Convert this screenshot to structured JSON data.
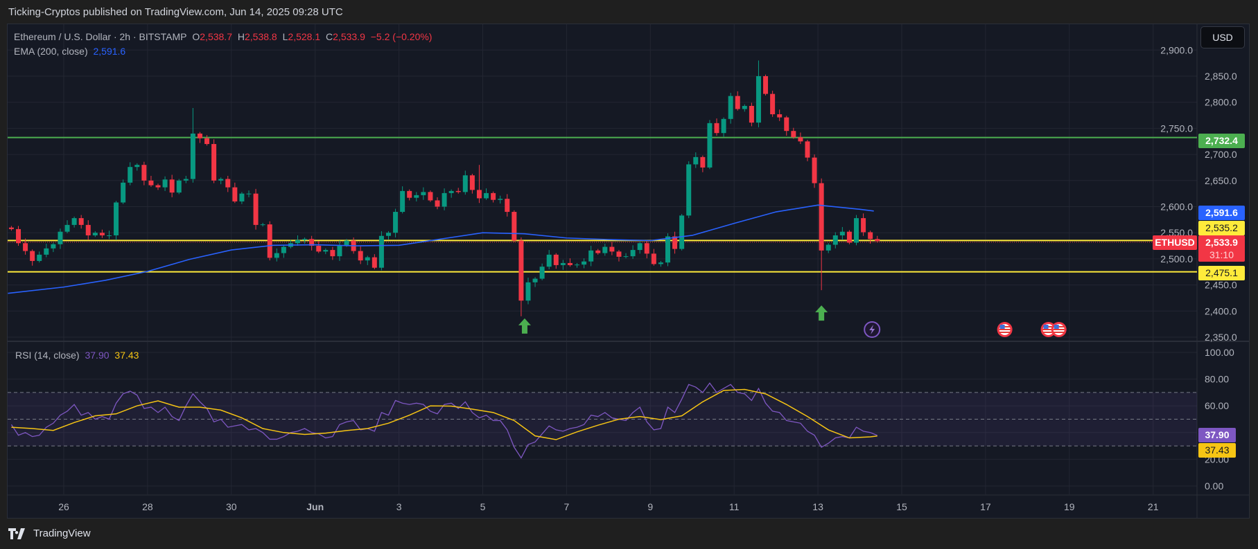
{
  "header": {
    "publisher_line": "Ticking-Cryptos published on TradingView.com, Jun 14, 2025 09:28 UTC"
  },
  "legend": {
    "symbol": "Ethereum / U.S. Dollar · 2h · BITSTAMP",
    "o_label": "O",
    "o": "2,538.7",
    "h_label": "H",
    "h": "2,538.8",
    "l_label": "L",
    "l": "2,528.1",
    "c_label": "C",
    "c": "2,533.9",
    "change": "−5.2 (−0.20%)",
    "ema_label": "EMA (200, close)",
    "ema_value": "2,591.6"
  },
  "currency_button": "USD",
  "rsi_legend": {
    "label": "RSI (14, close)",
    "rsi": "37.90",
    "ma": "37.43"
  },
  "price_labels": {
    "resistance": "2,732.4",
    "ema": "2,591.6",
    "level_mid": "2,535.2",
    "last": "2,533.9",
    "countdown": "31:10",
    "support": "2,475.1",
    "symbol_tag": "ETHUSD"
  },
  "rsi_labels": {
    "rsi": "37.90",
    "ma": "37.43"
  },
  "footer": {
    "brand": "TradingView"
  },
  "colors": {
    "up": "#089981",
    "down": "#f23645",
    "ema": "#2962ff",
    "rsi": "#7e57c2",
    "rsi_ma": "#f7c514",
    "resistance": "#4caf50",
    "support": "#ffeb3b",
    "background": "#151924"
  },
  "chart_data": [
    {
      "type": "candlestick",
      "symbol": "ETHUSD",
      "start": "2025-05-24T16:00",
      "step_hours": 4,
      "first_open": 2560,
      "closes": [
        2557,
        2530,
        2515,
        2496,
        2508,
        2520,
        2528,
        2552,
        2565,
        2578,
        2565,
        2545,
        2550,
        2545,
        2545,
        2608,
        2646,
        2676,
        2680,
        2650,
        2641,
        2637,
        2652,
        2627,
        2650,
        2653,
        2740,
        2731,
        2720,
        2650,
        2653,
        2637,
        2610,
        2625,
        2625,
        2565,
        2566,
        2502,
        2511,
        2523,
        2530,
        2536,
        2538,
        2525,
        2514,
        2517,
        2505,
        2526,
        2535,
        2515,
        2497,
        2503,
        2483,
        2544,
        2550,
        2590,
        2630,
        2617,
        2622,
        2628,
        2612,
        2600,
        2626,
        2630,
        2628,
        2660,
        2632,
        2616,
        2626,
        2613,
        2615,
        2590,
        2535,
        2420,
        2455,
        2462,
        2485,
        2508,
        2488,
        2492,
        2488,
        2489,
        2495,
        2516,
        2511,
        2523,
        2514,
        2504,
        2505,
        2517,
        2530,
        2510,
        2490,
        2493,
        2543,
        2519,
        2583,
        2681,
        2695,
        2675,
        2760,
        2741,
        2768,
        2812,
        2787,
        2793,
        2761,
        2850,
        2816,
        2777,
        2771,
        2745,
        2733,
        2725,
        2694,
        2645,
        2516,
        2527,
        2545,
        2552,
        2531,
        2578,
        2551,
        2538,
        2533.9
      ],
      "wick_extremes": [
        {
          "time": "2025-05-29T00:00",
          "high": 2789
        },
        {
          "time": "2025-06-04T20:00",
          "high": 2680
        },
        {
          "time": "2025-06-05T20:00",
          "low": 2390
        },
        {
          "time": "2025-06-11T12:00",
          "high": 2880
        },
        {
          "time": "2025-06-13T00:00",
          "low": 2440
        }
      ],
      "ema200": {
        "label": "EMA (200, close)",
        "times": [
          "2025-05-24T16:00",
          "2025-05-26T00:00",
          "2025-05-27T00:00",
          "2025-05-28T00:00",
          "2025-05-29T00:00",
          "2025-05-30T00:00",
          "2025-05-31T00:00",
          "2025-06-01T00:00",
          "2025-06-02T00:00",
          "2025-06-03T00:00",
          "2025-06-04T00:00",
          "2025-06-05T00:00",
          "2025-06-06T00:00",
          "2025-06-07T00:00",
          "2025-06-08T00:00",
          "2025-06-09T00:00",
          "2025-06-10T00:00",
          "2025-06-11T00:00",
          "2025-06-12T00:00",
          "2025-06-13T00:00",
          "2025-06-14T00:00",
          "2025-06-14T08:00"
        ],
        "values": [
          2434,
          2446,
          2459,
          2476,
          2499,
          2517,
          2526,
          2527,
          2525,
          2526,
          2538,
          2550,
          2548,
          2540,
          2537,
          2535,
          2545,
          2568,
          2590,
          2603,
          2595,
          2591.6
        ]
      },
      "horizontal_levels": [
        {
          "price": 2732.4,
          "color": "#4caf50"
        },
        {
          "price": 2535.2,
          "color": "#ffeb3b"
        },
        {
          "price": 2475.1,
          "color": "#ffeb3b"
        }
      ],
      "last_price": 2533.9,
      "signals": [
        {
          "type": "up-arrow",
          "time": "2025-06-06T00:00",
          "price": 2370
        },
        {
          "type": "up-arrow",
          "time": "2025-06-13T02:00",
          "price": 2395
        }
      ],
      "events": [
        {
          "type": "lightning-event",
          "time": "2025-06-14T07:00"
        },
        {
          "type": "us-economic-event",
          "time": "2025-06-17T11:00"
        },
        {
          "type": "us-economic-event",
          "time": "2025-06-18T12:00"
        },
        {
          "type": "us-economic-event",
          "time": "2025-06-18T18:00"
        }
      ],
      "y_ticks": [
        "2,350.0",
        "2,400.0",
        "2,450.0",
        "2,500.0",
        "2,550.0",
        "2,600.0",
        "2,650.0",
        "2,700.0",
        "2,750.0",
        "2,800.0",
        "2,850.0",
        "2,900.0"
      ],
      "y_tick_values": [
        2350,
        2400,
        2450,
        2500,
        2550,
        2600,
        2650,
        2700,
        2750,
        2800,
        2850,
        2900
      ],
      "ylim": [
        2330,
        2900
      ],
      "x_ticks": [
        "26",
        "28",
        "30",
        "Jun",
        "3",
        "5",
        "7",
        "9",
        "11",
        "13",
        "15",
        "17",
        "19",
        "21"
      ],
      "x_tick_dates": [
        "2025-05-26",
        "2025-05-28",
        "2025-05-30",
        "2025-06-01",
        "2025-06-03",
        "2025-06-05",
        "2025-06-07",
        "2025-06-09",
        "2025-06-11",
        "2025-06-13",
        "2025-06-15",
        "2025-06-17",
        "2025-06-19",
        "2025-06-21"
      ],
      "grid": true
    },
    {
      "type": "line",
      "title": "RSI (14, close)",
      "start": "2025-05-24T16:00",
      "rsi_step_hours": 4,
      "rsi": [
        46,
        38,
        40,
        37,
        38,
        44,
        47,
        53,
        56,
        61,
        53,
        55,
        50,
        52,
        50,
        62,
        69,
        71,
        68,
        58,
        59,
        55,
        59,
        52,
        49,
        60,
        69,
        63,
        58,
        48,
        50,
        44,
        45,
        46,
        42,
        43,
        40,
        35,
        35,
        37,
        40,
        41,
        43,
        40,
        39,
        36,
        37,
        46,
        48,
        49,
        42,
        43,
        41,
        55,
        53,
        64,
        62,
        61,
        62,
        61,
        56,
        54,
        61,
        62,
        58,
        63,
        55,
        51,
        53,
        49,
        49,
        42,
        29,
        21,
        31,
        33,
        39,
        45,
        42,
        41,
        43,
        44,
        46,
        53,
        52,
        55,
        51,
        50,
        49,
        55,
        59,
        48,
        42,
        43,
        59,
        55,
        65,
        76,
        74,
        70,
        77,
        70,
        73,
        76,
        70,
        69,
        64,
        73,
        62,
        56,
        55,
        49,
        48,
        47,
        41,
        38,
        29,
        32,
        36,
        37,
        36,
        44,
        41,
        40,
        37.9
      ],
      "ma_step_hours": 12,
      "rsi_ma": [
        44,
        43,
        41.6,
        47.5,
        52.5,
        54,
        60,
        63.7,
        59,
        59,
        56.8,
        51,
        43,
        40,
        38.6,
        39.6,
        41.5,
        43,
        47,
        53,
        60,
        59.8,
        57.5,
        55,
        49,
        37.5,
        34.7,
        40.5,
        45.5,
        50,
        52,
        49.7,
        52.5,
        63,
        71.5,
        72.3,
        69,
        61,
        52,
        42,
        36,
        36.8,
        37.43
      ],
      "bands": {
        "upper": 70,
        "middle": 50,
        "lower": 30
      },
      "y_ticks": [
        "0.00",
        "20.00",
        "60.00",
        "80.00",
        "100.00"
      ],
      "y_tick_values": [
        0,
        20,
        60,
        80,
        100
      ],
      "ylim": [
        0,
        100
      ]
    }
  ]
}
